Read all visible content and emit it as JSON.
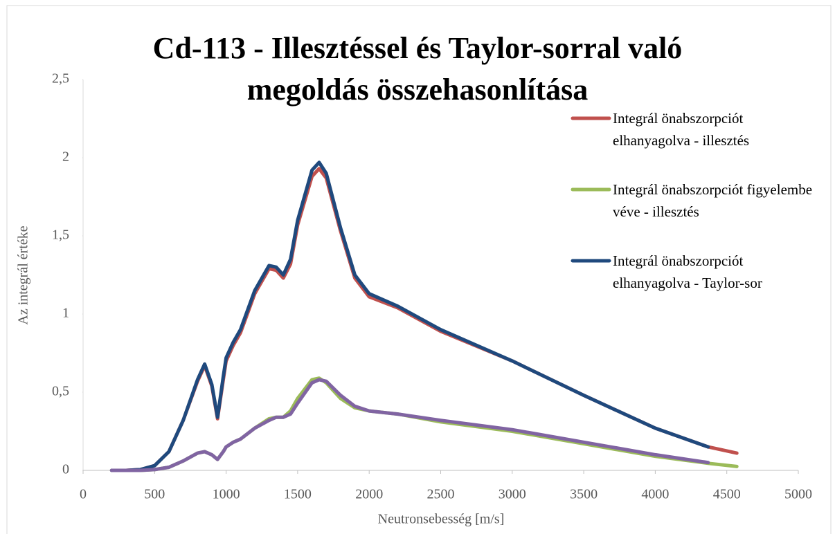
{
  "chart_data": {
    "type": "line",
    "title": "Cd-113 - Illesztéssel és Taylor-sorral való megoldás összehasonlítása",
    "x_label": "Neutronsebesség [m/s]",
    "y_label": "Az integrál értéke",
    "x": [
      200,
      300,
      400,
      500,
      600,
      700,
      800,
      850,
      900,
      940,
      980,
      1000,
      1050,
      1100,
      1200,
      1300,
      1350,
      1400,
      1450,
      1500,
      1600,
      1650,
      1700,
      1800,
      1900,
      2000,
      2200,
      2500,
      3000,
      3500,
      4000,
      4370,
      4570
    ],
    "series": [
      {
        "name": "Integrál önabszorpciót elhanyagolva - illesztés",
        "color": "#c0504d",
        "values": [
          0,
          0,
          0.005,
          0.03,
          0.12,
          0.32,
          0.57,
          0.67,
          0.54,
          0.33,
          0.58,
          0.7,
          0.8,
          0.88,
          1.13,
          1.29,
          1.28,
          1.23,
          1.32,
          1.57,
          1.88,
          1.93,
          1.87,
          1.53,
          1.23,
          1.11,
          1.04,
          0.89,
          0.7,
          0.48,
          0.27,
          0.15,
          0.11
        ]
      },
      {
        "name": "Integrál önabszorpciót figyelembe véve - illesztés",
        "color": "#9bbb59",
        "values": [
          0,
          0,
          0,
          0.005,
          0.02,
          0.06,
          0.11,
          0.12,
          0.1,
          0.07,
          0.12,
          0.15,
          0.18,
          0.2,
          0.27,
          0.33,
          0.34,
          0.34,
          0.38,
          0.46,
          0.58,
          0.59,
          0.56,
          0.46,
          0.4,
          0.38,
          0.36,
          0.31,
          0.25,
          0.17,
          0.09,
          0.045,
          0.025
        ]
      },
      {
        "name": "Integrál önabszorpciót elhanyagolva - Taylor-sor",
        "color": "#1f497d",
        "values": [
          0,
          0,
          0.005,
          0.03,
          0.12,
          0.32,
          0.58,
          0.68,
          0.55,
          0.34,
          0.6,
          0.72,
          0.82,
          0.9,
          1.15,
          1.31,
          1.3,
          1.25,
          1.35,
          1.6,
          1.92,
          1.97,
          1.9,
          1.55,
          1.25,
          1.13,
          1.05,
          0.9,
          0.7,
          0.48,
          0.27,
          0.15,
          null
        ]
      },
      {
        "color": "#8064a2",
        "values": [
          0,
          0,
          0,
          0.005,
          0.02,
          0.06,
          0.11,
          0.12,
          0.1,
          0.07,
          0.12,
          0.15,
          0.18,
          0.2,
          0.27,
          0.32,
          0.34,
          0.34,
          0.36,
          0.43,
          0.56,
          0.58,
          0.57,
          0.48,
          0.41,
          0.38,
          0.36,
          0.32,
          0.26,
          0.18,
          0.1,
          0.05,
          null
        ]
      }
    ],
    "xlim": [
      0,
      5000
    ],
    "xticks": [
      0,
      500,
      1000,
      1500,
      2000,
      2500,
      3000,
      3500,
      4000,
      4500,
      5000
    ],
    "ylim": [
      0,
      2.5
    ],
    "yticks": [
      {
        "value": 0,
        "label": "0"
      },
      {
        "value": 0.5,
        "label": "0,5"
      },
      {
        "value": 1,
        "label": "1"
      },
      {
        "value": 1.5,
        "label": "1,5"
      },
      {
        "value": 2,
        "label": "2"
      },
      {
        "value": 2.5,
        "label": "2,5"
      }
    ],
    "legend": "right"
  }
}
